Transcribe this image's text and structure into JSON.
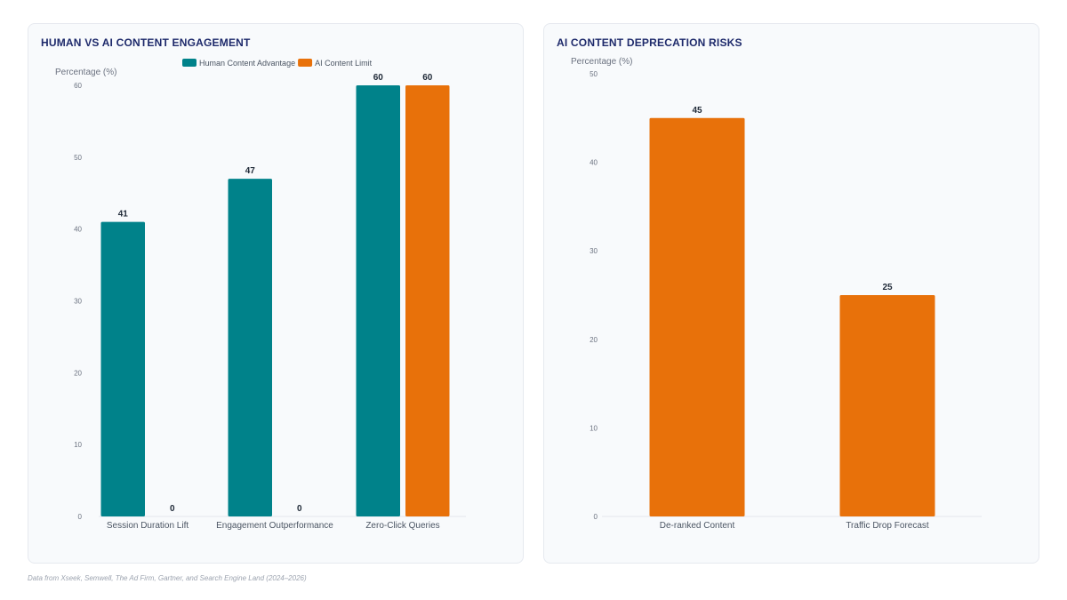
{
  "chart_data": [
    {
      "type": "bar",
      "title": "HUMAN VS AI CONTENT ENGAGEMENT",
      "ylabel": "Percentage (%)",
      "xlabel": "",
      "ylim": [
        0,
        60
      ],
      "yticks": [
        0,
        10,
        20,
        30,
        40,
        50,
        60
      ],
      "grid": false,
      "legend_position": "top",
      "categories": [
        "Session Duration Lift",
        "Engagement Outperformance",
        "Zero-Click Queries"
      ],
      "series": [
        {
          "name": "Human Content Advantage",
          "color": "#00828a",
          "values": [
            41,
            47,
            60
          ]
        },
        {
          "name": "AI Content Limit",
          "color": "#e8710a",
          "values": [
            0,
            0,
            60
          ]
        }
      ]
    },
    {
      "type": "bar",
      "title": "AI CONTENT DEPRECATION RISKS",
      "ylabel": "Percentage (%)",
      "xlabel": "",
      "ylim": [
        0,
        50
      ],
      "yticks": [
        0,
        10,
        20,
        30,
        40,
        50
      ],
      "grid": false,
      "legend_position": "none",
      "categories": [
        "De-ranked Content",
        "Traffic Drop Forecast"
      ],
      "series": [
        {
          "color": "#e8710a",
          "values": [
            45,
            25
          ]
        }
      ]
    }
  ],
  "footnote": "Data from Xseek, Semwell, The Ad Firm, Gartner, and Search Engine Land (2024–2026)"
}
